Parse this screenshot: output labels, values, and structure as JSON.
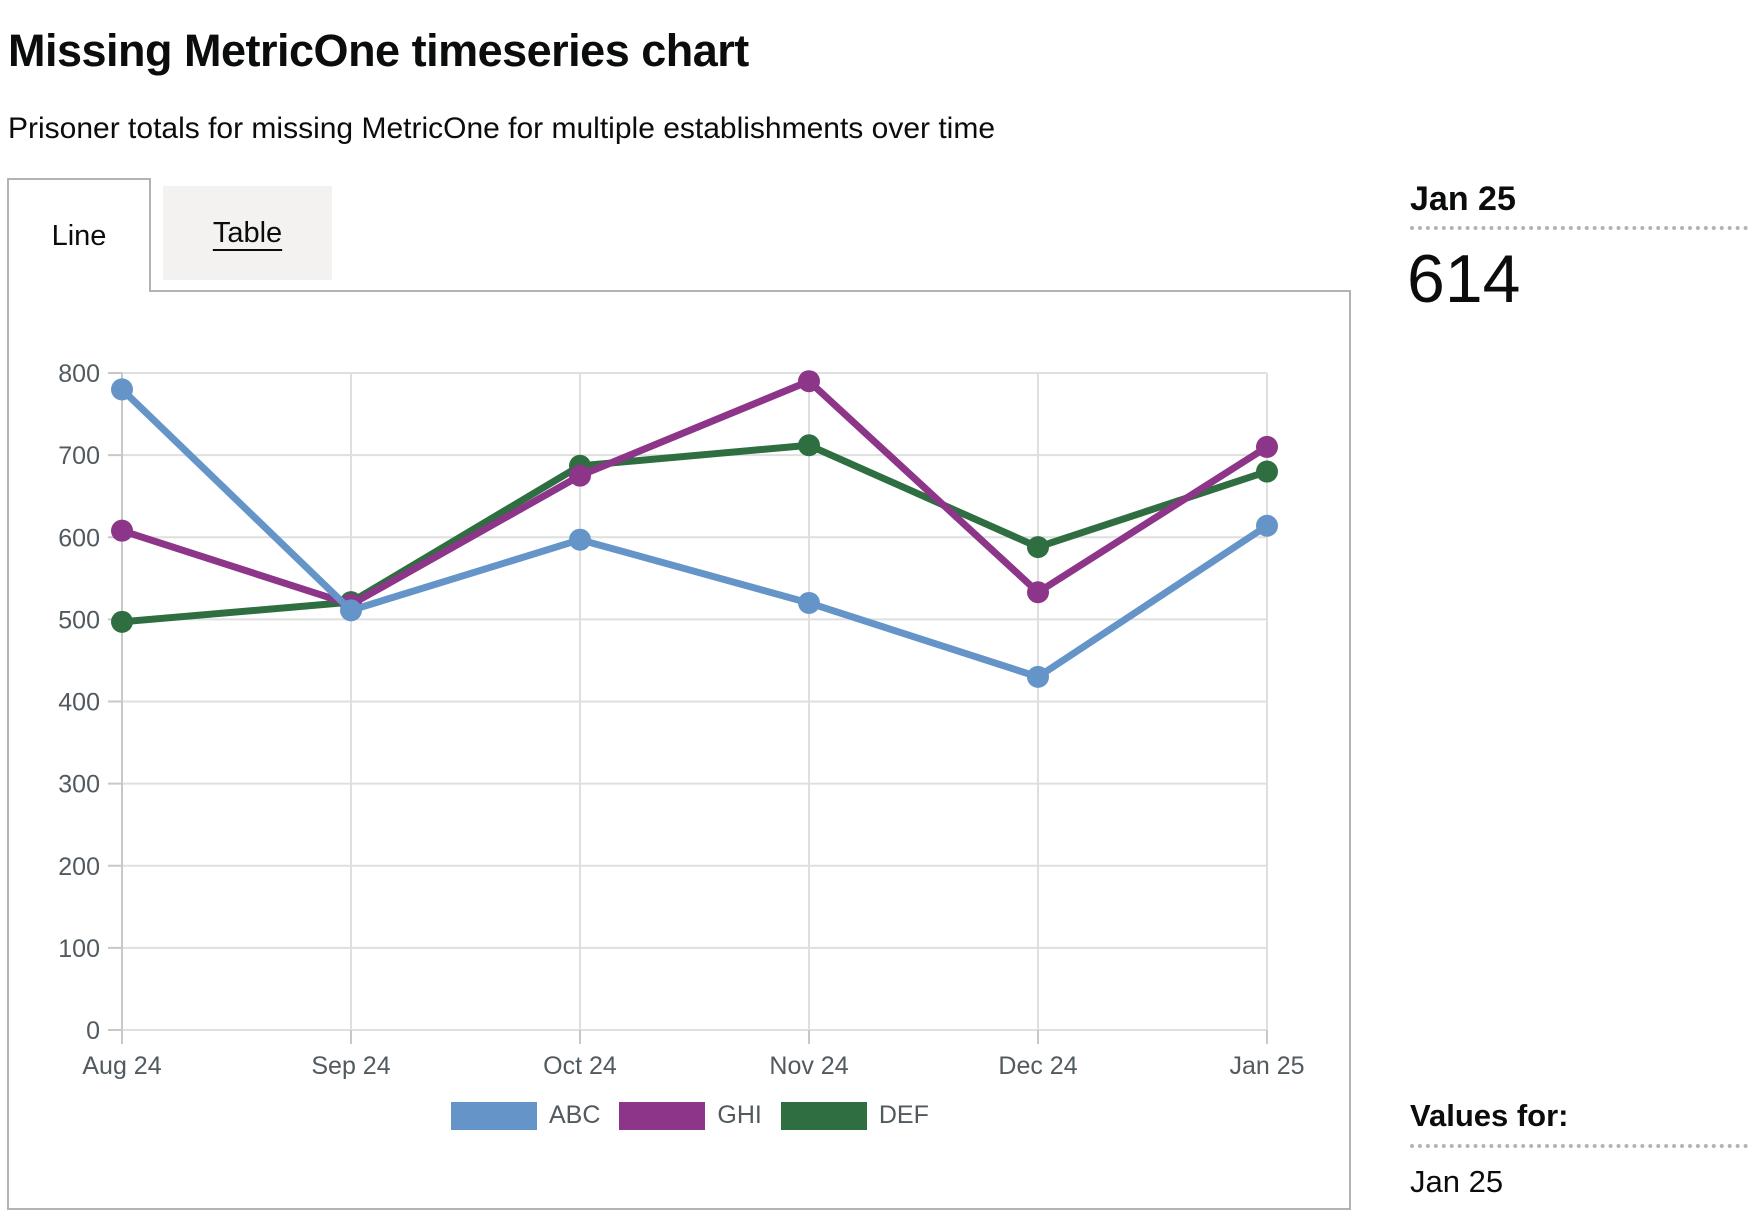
{
  "page": {
    "title": "Missing MetricOne timeseries chart",
    "subtitle": "Prisoner totals for missing MetricOne for multiple establishments over time"
  },
  "tabs": [
    {
      "label": "Line",
      "active": true
    },
    {
      "label": "Table",
      "active": false
    }
  ],
  "value_panel": {
    "heading": "Jan 25",
    "value": "614",
    "footer_heading": "Values for:",
    "footer_value": "Jan 25"
  },
  "chart_data": {
    "type": "line",
    "title": "",
    "xlabel": "",
    "ylabel": "",
    "categories": [
      "Aug 24",
      "Sep 24",
      "Oct 24",
      "Nov 24",
      "Dec 24",
      "Jan 25"
    ],
    "series": [
      {
        "name": "ABC",
        "color": "#6595c8",
        "values": [
          780,
          511,
          597,
          520,
          430,
          614
        ]
      },
      {
        "name": "GHI",
        "color": "#8c3589",
        "values": [
          608,
          518,
          675,
          790,
          533,
          710
        ]
      },
      {
        "name": "DEF",
        "color": "#2f6e41",
        "values": [
          497,
          521,
          687,
          712,
          588,
          680
        ]
      }
    ],
    "ylim": [
      0,
      800
    ],
    "yticks": [
      0,
      100,
      200,
      300,
      400,
      500,
      600,
      700,
      800
    ],
    "grid": true,
    "legend_position": "bottom",
    "colors": {
      "grid": "#dfdfdf",
      "axis": "#c6c9ca",
      "tick_label": "#505a5f",
      "panel_border": "#b1b4b6",
      "separator_dots": "#b1b4b6",
      "inactive_tab_bg": "#f3f2f1",
      "text": "#0b0c0c"
    }
  }
}
